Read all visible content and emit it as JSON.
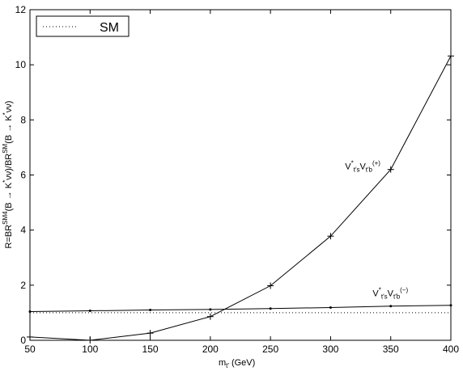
{
  "chart_data": {
    "type": "line",
    "xlabel_main": "m",
    "xlabel_sub": "t′",
    "xlabel_rest": " (GeV)",
    "ylabel_parts": [
      "R=BR",
      "SM4",
      "(B → K",
      "*",
      "νν)/BR",
      "SM",
      "(B → K",
      "*",
      "νν)"
    ],
    "xlim": [
      50,
      400
    ],
    "ylim": [
      0,
      12
    ],
    "xticks": [
      50,
      100,
      150,
      200,
      250,
      300,
      350,
      400
    ],
    "yticks": [
      0,
      2,
      4,
      6,
      8,
      10,
      12
    ],
    "legend": {
      "position": "top-left",
      "entry": "SM"
    },
    "series": [
      {
        "name": "SM",
        "style": "dotted",
        "x": [
          50,
          400
        ],
        "y": [
          1.0,
          1.0
        ]
      },
      {
        "name": "V*t′s Vt′b (+)",
        "style": "solid-plus",
        "x": [
          50,
          100,
          150,
          200,
          250,
          300,
          350,
          400
        ],
        "y": [
          0.12,
          0.0,
          0.26,
          0.86,
          1.98,
          3.78,
          6.2,
          10.32
        ]
      },
      {
        "name": "V*t′s Vt′b (−)",
        "style": "solid-dot",
        "x": [
          50,
          100,
          150,
          200,
          250,
          300,
          350,
          400
        ],
        "y": [
          1.04,
          1.07,
          1.1,
          1.12,
          1.15,
          1.19,
          1.24,
          1.27
        ]
      }
    ],
    "annotations": [
      {
        "text_V": "V",
        "text_star": "*",
        "text_s": "t′s",
        "text_V2": "V",
        "text_b": "t′b",
        "text_sign": "(+)",
        "at": [
          312,
          6.2
        ]
      },
      {
        "text_V": "V",
        "text_star": "*",
        "text_s": "t′s",
        "text_V2": "V",
        "text_b": "t′b",
        "text_sign": "(−)",
        "at": [
          335,
          1.6
        ]
      }
    ]
  },
  "colors": {
    "line": "#000000",
    "background": "#ffffff"
  }
}
